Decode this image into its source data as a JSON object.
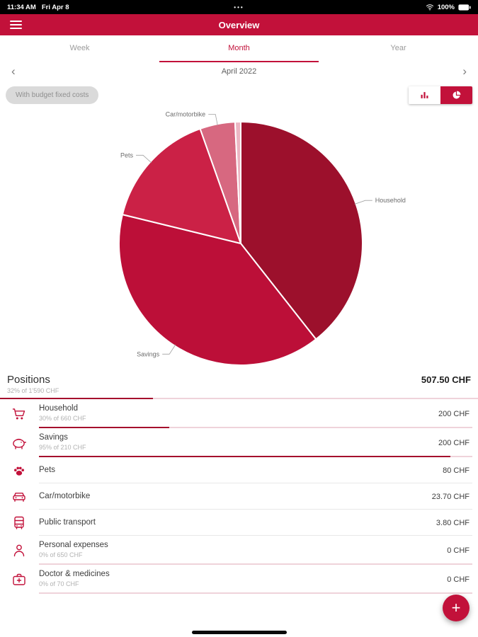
{
  "theme": {
    "primary": "#C2113A",
    "progress_fill": "#A50F2D",
    "progress_track": "#EFD3DA"
  },
  "status_bar": {
    "time": "11:34 AM",
    "date": "Fri Apr 8",
    "dots": "•••",
    "battery": "100%"
  },
  "app_bar": {
    "title": "Overview"
  },
  "tabs": [
    {
      "label": "Week",
      "active": false
    },
    {
      "label": "Month",
      "active": true
    },
    {
      "label": "Year",
      "active": false
    }
  ],
  "period_nav": {
    "label": "April 2022",
    "prev_icon": "‹",
    "next_icon": "›"
  },
  "filter_chip": {
    "label": "With budget fixed costs"
  },
  "chart_toggle": {
    "options": [
      "bar-chart",
      "pie-chart"
    ],
    "selected": "pie-chart"
  },
  "chart_data": {
    "type": "pie",
    "unit": "CHF",
    "total": 507.5,
    "legend_position": "none",
    "slices": [
      {
        "label": "Household",
        "value": 200,
        "color": "#9C102C",
        "show_label": true
      },
      {
        "label": "Savings",
        "value": 200,
        "color": "#BC0F38",
        "show_label": true
      },
      {
        "label": "Pets",
        "value": 80,
        "color": "#CB2146",
        "show_label": true
      },
      {
        "label": "Car/motorbike",
        "value": 23.7,
        "color": "#D76880",
        "show_label": true
      },
      {
        "label": "Public transport",
        "value": 3.8,
        "color": "#ECB6C3",
        "show_label": false
      }
    ]
  },
  "positions": {
    "header": "Positions",
    "total": "507.50 CHF",
    "subtitle": "32% of 1'590 CHF",
    "progress_pct": 32,
    "rows": [
      {
        "icon": "cart-icon",
        "label": "Household",
        "sub": "30% of 660 CHF",
        "progress": 30,
        "amount": "200 CHF"
      },
      {
        "icon": "piggy-bank-icon",
        "label": "Savings",
        "sub": "95% of 210 CHF",
        "progress": 95,
        "amount": "200 CHF"
      },
      {
        "icon": "paw-icon",
        "label": "Pets",
        "amount": "80 CHF"
      },
      {
        "icon": "car-icon",
        "label": "Car/motorbike",
        "amount": "23.70 CHF"
      },
      {
        "icon": "bus-icon",
        "label": "Public transport",
        "amount": "3.80 CHF"
      },
      {
        "icon": "person-icon",
        "label": "Personal expenses",
        "sub": "0% of 650 CHF",
        "progress": 0,
        "amount": "0 CHF"
      },
      {
        "icon": "medkit-icon",
        "label": "Doctor & medicines",
        "sub": "0% of 70 CHF",
        "progress": 0,
        "amount": "0 CHF"
      }
    ]
  },
  "fab": {
    "label": "+"
  }
}
